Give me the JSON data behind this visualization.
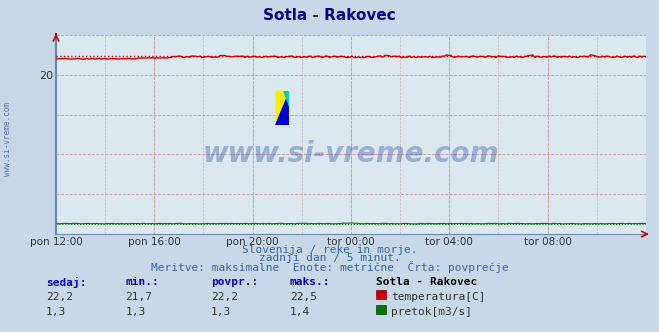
{
  "title": "Sotla - Rakovec",
  "title_color": "#000099",
  "bg_color": "#c8d8e8",
  "plot_bg_color": "#dce8f0",
  "grid_color_major": "#cc9999",
  "grid_color_minor": "#ddbbbb",
  "x_labels": [
    "pon 12:00",
    "pon 16:00",
    "pon 20:00",
    "tor 00:00",
    "tor 04:00",
    "tor 08:00"
  ],
  "ylim": [
    0,
    25
  ],
  "yticks": [
    20
  ],
  "temp_color": "#cc0000",
  "temp_avg_color": "#cc0000",
  "flow_color": "#007700",
  "flow_avg_color": "#007700",
  "temp_avg": 22.3,
  "flow_avg": 1.3,
  "watermark": "www.si-vreme.com",
  "watermark_color": "#2244aa",
  "subtitle1": "Slovenija / reke in morje.",
  "subtitle2": "zadnji dan / 5 minut.",
  "subtitle3": "Meritve: maksimalne  Enote: metrične  Črta: povprečje",
  "subtitle_color": "#3366aa",
  "label_sedaj": "sedaj:",
  "label_min": "min.:",
  "label_povpr": "povpr.:",
  "label_maks": "maks.:",
  "label_station": "Sotla - Rakovec",
  "label_temp": "temperatura[C]",
  "label_flow": "pretok[m3/s]",
  "left_label": "www.si-vreme.com",
  "n_points": 288,
  "axis_color": "#6688bb"
}
